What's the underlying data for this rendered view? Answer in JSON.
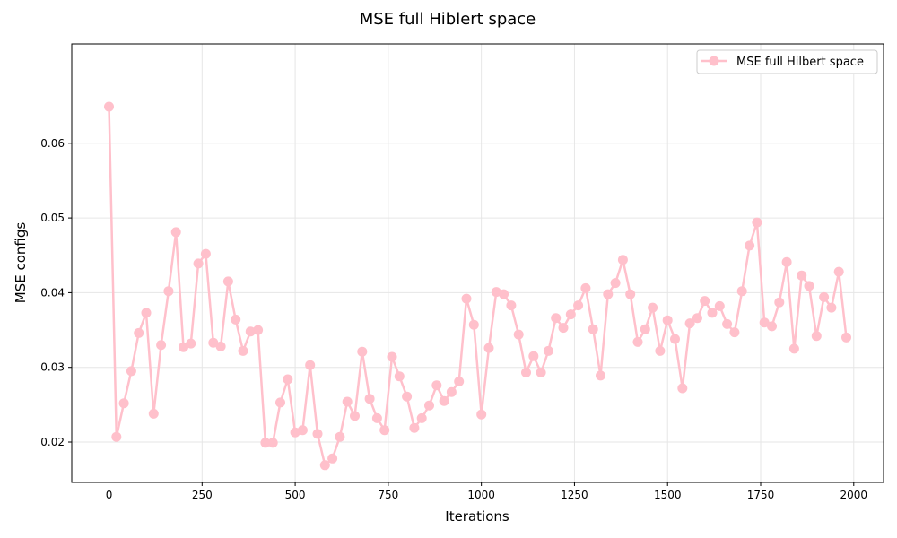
{
  "chart_data": {
    "type": "line",
    "title": "MSE full Hiblert space",
    "xlabel": "Iterations",
    "ylabel": "MSE configs",
    "xlim": [
      -100,
      2080
    ],
    "ylim": [
      0.0146,
      0.0733
    ],
    "xticks": [
      0,
      250,
      500,
      750,
      1000,
      1250,
      1500,
      1750,
      2000
    ],
    "yticks": [
      0.02,
      0.03,
      0.04,
      0.05,
      0.06
    ],
    "grid": true,
    "legend_position": "top-right",
    "series": [
      {
        "name": "MSE full Hilbert space",
        "color": "#ffc0cb",
        "marker": "circle",
        "x": [
          0,
          20,
          40,
          60,
          80,
          100,
          120,
          140,
          160,
          180,
          200,
          220,
          240,
          260,
          280,
          300,
          320,
          340,
          360,
          380,
          400,
          420,
          440,
          460,
          480,
          500,
          520,
          540,
          560,
          580,
          600,
          620,
          640,
          660,
          680,
          700,
          720,
          740,
          760,
          780,
          800,
          820,
          840,
          860,
          880,
          900,
          920,
          940,
          960,
          980,
          1000,
          1020,
          1040,
          1060,
          1080,
          1100,
          1120,
          1140,
          1160,
          1180,
          1200,
          1220,
          1240,
          1260,
          1280,
          1300,
          1320,
          1340,
          1360,
          1380,
          1400,
          1420,
          1440,
          1460,
          1480,
          1500,
          1520,
          1540,
          1560,
          1580,
          1600,
          1620,
          1640,
          1660,
          1680,
          1700,
          1720,
          1740,
          1760,
          1780,
          1800,
          1820,
          1840,
          1860,
          1880,
          1900,
          1920,
          1940,
          1960,
          1980
        ],
        "y": [
          0.0649,
          0.0207,
          0.0252,
          0.0295,
          0.0346,
          0.0373,
          0.0238,
          0.033,
          0.0402,
          0.0481,
          0.0327,
          0.0332,
          0.0439,
          0.0452,
          0.0333,
          0.0328,
          0.0415,
          0.0364,
          0.0322,
          0.0348,
          0.035,
          0.0199,
          0.0199,
          0.0253,
          0.0284,
          0.0213,
          0.0216,
          0.0303,
          0.0211,
          0.0169,
          0.0178,
          0.0207,
          0.0254,
          0.0235,
          0.0321,
          0.0258,
          0.0232,
          0.0216,
          0.0314,
          0.0288,
          0.0261,
          0.0219,
          0.0232,
          0.0249,
          0.0276,
          0.0255,
          0.0267,
          0.0281,
          0.0392,
          0.0357,
          0.0237,
          0.0326,
          0.0401,
          0.0398,
          0.0383,
          0.0344,
          0.0293,
          0.0315,
          0.0293,
          0.0322,
          0.0366,
          0.0353,
          0.0371,
          0.0383,
          0.0406,
          0.0351,
          0.0289,
          0.0398,
          0.0413,
          0.0444,
          0.0398,
          0.0334,
          0.0351,
          0.038,
          0.0322,
          0.0363,
          0.0338,
          0.0272,
          0.0359,
          0.0366,
          0.0389,
          0.0373,
          0.0382,
          0.0358,
          0.0347,
          0.0402,
          0.0463,
          0.0494,
          0.036,
          0.0355,
          0.0387,
          0.0441,
          0.0325,
          0.0423,
          0.0409,
          0.0342,
          0.0394,
          0.038,
          0.0428,
          0.034
        ]
      }
    ]
  }
}
